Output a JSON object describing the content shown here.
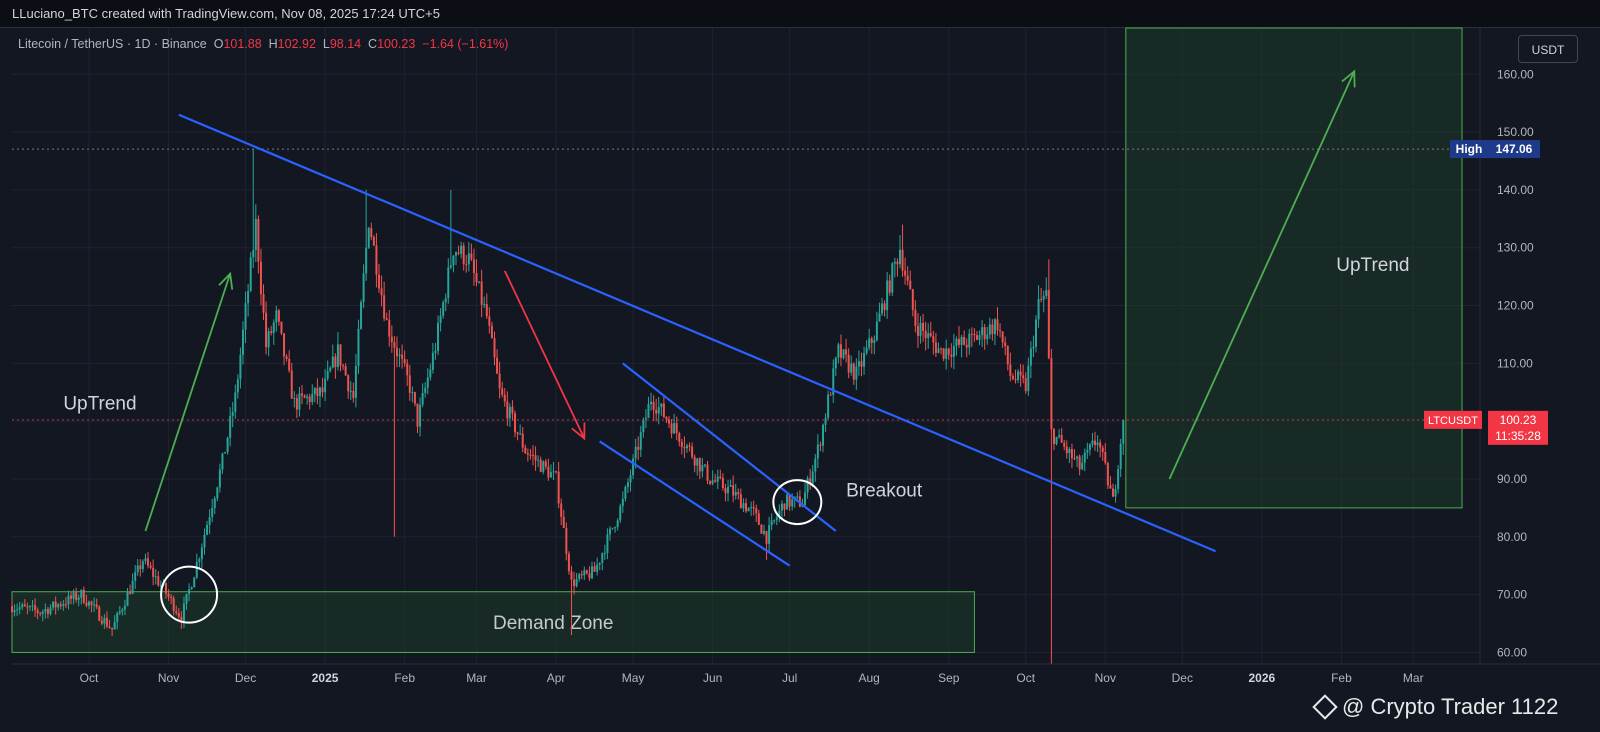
{
  "header": {
    "attribution": "LLuciano_BTC created with TradingView.com, Nov 08, 2025 17:24 UTC+5"
  },
  "symbol": {
    "name": "Litecoin / TetherUS · 1D · Binance",
    "o_label": "O",
    "open": "101.88",
    "h_label": "H",
    "high": "102.92",
    "l_label": "L",
    "low": "98.14",
    "c_label": "C",
    "close": "100.23",
    "change": "−1.64 (−1.61%)"
  },
  "currency_button": "USDT",
  "watermark": "@ Crypto Trader 1122",
  "colors": {
    "background": "#131722",
    "up_candle": "#26a69a",
    "down_candle": "#ef5350",
    "trendline": "#2962ff",
    "uptrend_arrow": "#4caf50",
    "downtrend_arrow": "#f23645",
    "zone_fill": "#1e3a2a",
    "zone_border": "#4caf50",
    "price_tag": "#f23645",
    "high_tag": "#1e3a8a"
  },
  "chart_data": {
    "type": "candlestick",
    "title": "Litecoin / TetherUS · 1D · Binance",
    "y_axis": {
      "side": "right",
      "ylim": [
        58,
        168
      ],
      "ticks": [
        "60.00",
        "70.00",
        "80.00",
        "90.00",
        "100.00",
        "110.00",
        "120.00",
        "130.00",
        "140.00",
        "150.00",
        "160.00"
      ]
    },
    "x_axis": {
      "tick_labels": [
        "Oct",
        "Nov",
        "Dec",
        "2025",
        "Feb",
        "Mar",
        "Apr",
        "May",
        "Jun",
        "Jul",
        "Aug",
        "Sep",
        "Oct",
        "Nov",
        "Dec",
        "2026",
        "Feb",
        "Mar"
      ],
      "tick_dates": [
        "2024-10-01",
        "2024-11-01",
        "2024-12-01",
        "2025-01-01",
        "2025-02-01",
        "2025-03-01",
        "2025-04-01",
        "2025-05-01",
        "2025-06-01",
        "2025-07-01",
        "2025-08-01",
        "2025-09-01",
        "2025-10-01",
        "2025-11-01",
        "2025-12-01",
        "2026-01-01",
        "2026-02-01",
        "2026-03-01"
      ],
      "bold_labels": [
        "2025",
        "2026"
      ]
    },
    "grid": true,
    "anchors": [
      [
        "2024-09-01",
        68
      ],
      [
        "2024-09-12",
        67
      ],
      [
        "2024-09-28",
        70
      ],
      [
        "2024-10-10",
        64
      ],
      [
        "2024-10-22",
        76
      ],
      [
        "2024-10-30",
        71
      ],
      [
        "2024-11-06",
        66
      ],
      [
        "2024-11-13",
        77
      ],
      [
        "2024-11-22",
        93
      ],
      [
        "2024-11-27",
        104
      ],
      [
        "2024-12-05",
        134
      ],
      [
        "2024-12-09",
        113
      ],
      [
        "2024-12-13",
        118
      ],
      [
        "2024-12-20",
        103
      ],
      [
        "2024-12-31",
        105
      ],
      [
        "2025-01-06",
        112
      ],
      [
        "2025-01-12",
        104
      ],
      [
        "2025-01-18",
        135
      ],
      [
        "2025-01-25",
        117
      ],
      [
        "2025-02-03",
        106
      ],
      [
        "2025-02-06",
        100
      ],
      [
        "2025-02-13",
        113
      ],
      [
        "2025-02-20",
        130
      ],
      [
        "2025-02-26",
        128
      ],
      [
        "2025-03-05",
        118
      ],
      [
        "2025-03-10",
        105
      ],
      [
        "2025-03-20",
        95
      ],
      [
        "2025-04-01",
        90
      ],
      [
        "2025-04-07",
        72
      ],
      [
        "2025-04-16",
        74
      ],
      [
        "2025-04-27",
        86
      ],
      [
        "2025-05-08",
        104
      ],
      [
        "2025-05-15",
        100
      ],
      [
        "2025-05-23",
        95
      ],
      [
        "2025-05-31",
        90
      ],
      [
        "2025-06-08",
        88
      ],
      [
        "2025-06-17",
        84
      ],
      [
        "2025-06-22",
        80
      ],
      [
        "2025-06-29",
        86
      ],
      [
        "2025-07-06",
        86
      ],
      [
        "2025-07-12",
        95
      ],
      [
        "2025-07-20",
        112
      ],
      [
        "2025-07-27",
        108
      ],
      [
        "2025-08-03",
        115
      ],
      [
        "2025-08-13",
        130
      ],
      [
        "2025-08-19",
        117
      ],
      [
        "2025-08-29",
        112
      ],
      [
        "2025-09-10",
        114
      ],
      [
        "2025-09-20",
        117
      ],
      [
        "2025-09-25",
        108
      ],
      [
        "2025-10-01",
        106
      ],
      [
        "2025-10-06",
        120
      ],
      [
        "2025-10-09",
        122
      ],
      [
        "2025-10-11",
        98
      ],
      [
        "2025-10-15",
        96
      ],
      [
        "2025-10-22",
        92
      ],
      [
        "2025-10-29",
        97
      ],
      [
        "2025-11-04",
        86
      ],
      [
        "2025-11-08",
        100.23
      ]
    ],
    "wicks": [
      [
        "2024-12-04",
        147
      ],
      [
        "2025-01-17",
        140
      ],
      [
        "2025-02-19",
        140
      ],
      [
        "2025-10-11",
        58
      ],
      [
        "2025-10-10",
        128
      ],
      [
        "2025-04-07",
        63
      ],
      [
        "2025-01-28",
        80
      ],
      [
        "2025-06-22",
        76
      ],
      [
        "2025-08-14",
        134
      ]
    ],
    "last_price": {
      "label": "LTCUSDT",
      "value": "100.23",
      "countdown": "11:35:28",
      "price": 100.23
    },
    "high_line": {
      "label": "High",
      "value": "147.06",
      "price": 147.06
    },
    "trendlines": [
      {
        "from": [
          "2024-11-05",
          153
        ],
        "to": [
          "2025-12-14",
          77.5
        ],
        "color": "#2962ff"
      },
      {
        "from": [
          "2025-04-27",
          110
        ],
        "to": [
          "2025-07-19",
          81
        ],
        "color": "#2962ff"
      },
      {
        "from": [
          "2025-04-18",
          96.5
        ],
        "to": [
          "2025-07-01",
          75
        ],
        "color": "#2962ff"
      }
    ],
    "arrows": [
      {
        "from": [
          "2024-10-23",
          81
        ],
        "to": [
          "2024-11-25",
          125.5
        ],
        "color": "#4caf50"
      },
      {
        "from": [
          "2025-03-12",
          126
        ],
        "to": [
          "2025-04-12",
          97
        ],
        "color": "#f23645"
      },
      {
        "from": [
          "2025-11-26",
          90
        ],
        "to": [
          "2026-02-06",
          160.5
        ],
        "color": "#4caf50"
      }
    ],
    "zones": [
      {
        "label": "Demand Zone",
        "from": [
          "2024-09-01",
          60
        ],
        "to": [
          "2025-09-11",
          70.5
        ]
      },
      {
        "label": "",
        "from": [
          "2025-11-09",
          85
        ],
        "to": [
          "2026-03-20",
          168
        ]
      }
    ],
    "circles": [
      {
        "center": [
          "2024-11-09",
          70
        ],
        "rx": 28,
        "ry": 28
      },
      {
        "center": [
          "2025-07-04",
          86
        ],
        "rx": 24,
        "ry": 22
      }
    ],
    "text_annotations": [
      {
        "text": "UpTrend",
        "at": [
          "2024-09-21",
          102
        ]
      },
      {
        "text": "Breakout",
        "at": [
          "2025-07-23",
          87
        ]
      },
      {
        "text": "UpTrend",
        "at": [
          "2026-01-30",
          126
        ]
      }
    ]
  }
}
